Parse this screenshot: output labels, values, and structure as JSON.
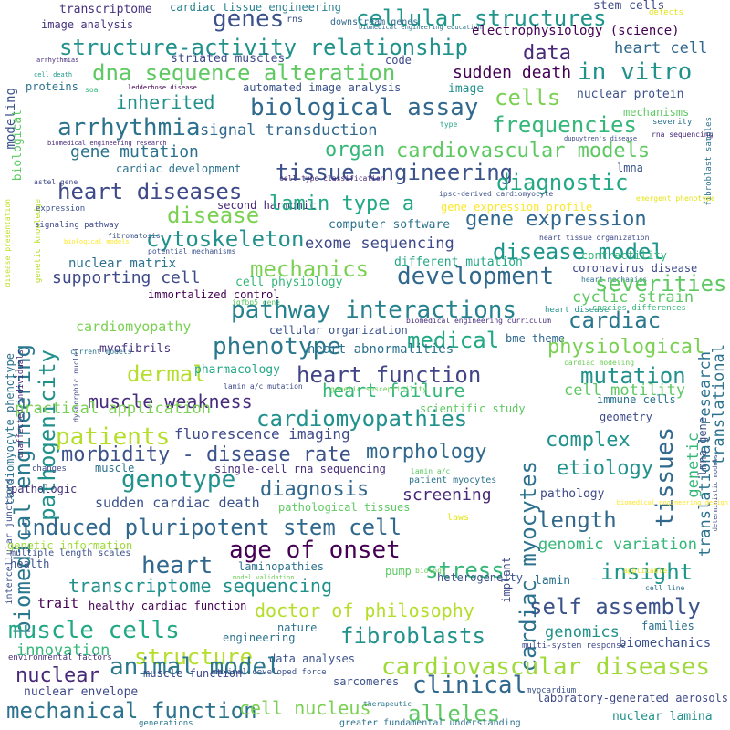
{
  "words": [
    {
      "text": "transcriptome",
      "color": "#46337e"
    },
    {
      "text": "cardiac tissue engineering",
      "color": "#277f8e"
    },
    {
      "text": "rns",
      "color": "#3b528b"
    },
    {
      "text": "stem cells",
      "color": "#3e4a89"
    },
    {
      "text": "defects",
      "color": "#e5e419"
    },
    {
      "text": "genes",
      "color": "#3b528b"
    },
    {
      "text": "cellular structures",
      "color": "#1f968b"
    },
    {
      "text": "image analysis",
      "color": "#46337e"
    },
    {
      "text": "downstream genes",
      "color": "#31688e"
    },
    {
      "text": "biomedical engineering education",
      "color": "#2c728e"
    },
    {
      "text": "electrophysiology (science)",
      "color": "#440154"
    },
    {
      "text": "modeling",
      "color": "#3b528b"
    },
    {
      "text": "structure-activity relationship",
      "color": "#21918c"
    },
    {
      "text": "data",
      "color": "#482878"
    },
    {
      "text": "heart cell",
      "color": "#31688e"
    },
    {
      "text": "arrhythmias",
      "color": "#472d7b"
    },
    {
      "text": "striated muscles",
      "color": "#3e4a89"
    },
    {
      "text": "code",
      "color": "#3e4a89"
    },
    {
      "text": "in vitro",
      "color": "#21918c"
    },
    {
      "text": "fibroblast samples",
      "color": "#2c728e"
    },
    {
      "text": "dna sequence alteration",
      "color": "#5ec962"
    },
    {
      "text": "sudden death",
      "color": "#440154"
    },
    {
      "text": "biological",
      "color": "#5ec962"
    },
    {
      "text": "cell death",
      "color": "#1f9a8a"
    },
    {
      "text": "proteins",
      "color": "#2c728e"
    },
    {
      "text": "ledderhose disease",
      "color": "#440154"
    },
    {
      "text": "automated image analysis",
      "color": "#3b528b"
    },
    {
      "text": "image",
      "color": "#21918c"
    },
    {
      "text": "cells",
      "color": "#7ad151"
    },
    {
      "text": "nuclear protein",
      "color": "#3b528b"
    },
    {
      "text": "soa",
      "color": "#35b779"
    },
    {
      "text": "inherited",
      "color": "#21918c"
    },
    {
      "text": "biological assay",
      "color": "#31688e"
    },
    {
      "text": "mechanisms",
      "color": "#5ec962"
    },
    {
      "text": "severity",
      "color": "#2c728e"
    },
    {
      "text": "type",
      "color": "#22a884"
    },
    {
      "text": "rna sequencing",
      "color": "#482878"
    },
    {
      "text": "disease presentation",
      "color": "#bddf26"
    },
    {
      "text": "genetic knowledge",
      "color": "#b5de2b"
    },
    {
      "text": "arrhythmia",
      "color": "#2c728e"
    },
    {
      "text": "signal transduction",
      "color": "#31688e"
    },
    {
      "text": "frequencies",
      "color": "#35b779"
    },
    {
      "text": "translational research",
      "color": "#2c728e"
    },
    {
      "text": "biomedical engineering research",
      "color": "#482878"
    },
    {
      "text": "dupuytren's disease",
      "color": "#3e4a89"
    },
    {
      "text": "biomedical engineering",
      "color": "#2a788e"
    },
    {
      "text": "pathogenicity",
      "color": "#21918c"
    },
    {
      "text": "gene mutation",
      "color": "#2c728e"
    },
    {
      "text": "organ",
      "color": "#35b779"
    },
    {
      "text": "cardiovascular models",
      "color": "#5ec962"
    },
    {
      "text": "cardiac development",
      "color": "#2c728e"
    },
    {
      "text": "lmna",
      "color": "#3b528b"
    },
    {
      "text": "astel gene",
      "color": "#3e4a89"
    },
    {
      "text": "tissue engineering",
      "color": "#3b528b"
    },
    {
      "text": "diagnostic",
      "color": "#22a884"
    },
    {
      "text": "cell type classification",
      "color": "#482878"
    },
    {
      "text": "heart diseases",
      "color": "#3e4a89"
    },
    {
      "text": "ipsc-derived cardiomyocyte",
      "color": "#3b528b"
    },
    {
      "text": "emergent phenotype",
      "color": "#e5e419"
    },
    {
      "text": "disease",
      "color": "#7ad151"
    },
    {
      "text": "second harmonic",
      "color": "#482878"
    },
    {
      "text": "lamin type a",
      "color": "#22a884"
    },
    {
      "text": "gene expression profile",
      "color": "#fde725"
    },
    {
      "text": "expression",
      "color": "#3b528b"
    },
    {
      "text": "gene expression",
      "color": "#31688e"
    },
    {
      "text": "cytoskeleton",
      "color": "#21918c"
    },
    {
      "text": "signaling pathway",
      "color": "#3e4a89"
    },
    {
      "text": "computer software",
      "color": "#2c728e"
    },
    {
      "text": "heart tissue organization",
      "color": "#3e4a89"
    },
    {
      "text": "biological models",
      "color": "#fde725"
    },
    {
      "text": "fibromatosis",
      "color": "#3b528b"
    },
    {
      "text": "exome sequencing",
      "color": "#3e4a89"
    },
    {
      "text": "disease model",
      "color": "#1f968b"
    },
    {
      "text": "contractility",
      "color": "#35b779"
    },
    {
      "text": "nuclear matrix",
      "color": "#2c728e"
    },
    {
      "text": "potential mechanisms",
      "color": "#3b528b"
    },
    {
      "text": "different mutation",
      "color": "#22a884"
    },
    {
      "text": "coronavirus disease",
      "color": "#3e4a89"
    },
    {
      "text": "mechanics",
      "color": "#7ad151"
    },
    {
      "text": "development",
      "color": "#31688e"
    },
    {
      "text": "cardiomyocyte phenotype",
      "color": "#2c728e"
    },
    {
      "text": "unaffected individuals",
      "color": "#482878"
    },
    {
      "text": "dysmorphic nuclei",
      "color": "#3e4a89"
    },
    {
      "text": "supporting cell",
      "color": "#3e4a89"
    },
    {
      "text": "cell physiology",
      "color": "#35b779"
    },
    {
      "text": "heart mechanics",
      "color": "#2c728e"
    },
    {
      "text": "severities",
      "color": "#5ec962"
    },
    {
      "text": "immortalized control",
      "color": "#440154"
    },
    {
      "text": "igfbp5 gene",
      "color": "#5ec962"
    },
    {
      "text": "cyclic strain",
      "color": "#5ec962"
    },
    {
      "text": "pathway interactions",
      "color": "#26828e"
    },
    {
      "text": "heart disease",
      "color": "#21918c"
    },
    {
      "text": "cardiac",
      "color": "#2a788e"
    },
    {
      "text": "biomedical engineering curriculum",
      "color": "#472d7b"
    },
    {
      "text": "species differences",
      "color": "#35b779"
    },
    {
      "text": "cardiomyopathy",
      "color": "#7ad151"
    },
    {
      "text": "cellular organization",
      "color": "#3b528b"
    },
    {
      "text": "medical",
      "color": "#22a884"
    },
    {
      "text": "bme theme",
      "color": "#31688e"
    },
    {
      "text": "translational",
      "color": "#2c728e"
    },
    {
      "text": "phenotype",
      "color": "#2a788e"
    },
    {
      "text": "heart abnormalities",
      "color": "#2c728e"
    },
    {
      "text": "physiological",
      "color": "#7ad151"
    },
    {
      "text": "myofibrils",
      "color": "#46337e"
    },
    {
      "text": "current models",
      "color": "#2c728e"
    },
    {
      "text": "cardiac modeling",
      "color": "#6ece58"
    },
    {
      "text": "dermal",
      "color": "#b5de2b"
    },
    {
      "text": "pharmacology",
      "color": "#22a884"
    },
    {
      "text": "heart function",
      "color": "#414487"
    },
    {
      "text": "mutation",
      "color": "#21918c"
    },
    {
      "text": "lamin a/c mutation",
      "color": "#3e4a89"
    },
    {
      "text": "muscle weakness",
      "color": "#472d7b"
    },
    {
      "text": "heart failure",
      "color": "#35b779"
    },
    {
      "text": "genetic susceptibility",
      "color": "#6ece58"
    },
    {
      "text": "cell motility",
      "color": "#5ec962"
    },
    {
      "text": "practical application",
      "color": "#7ad151"
    },
    {
      "text": "immune cells",
      "color": "#2c728e"
    },
    {
      "text": "intercellular junctions",
      "color": "#3b528b"
    },
    {
      "text": "cardiomyopathies",
      "color": "#21918c"
    },
    {
      "text": "scientific study",
      "color": "#5ec962"
    },
    {
      "text": "geometry",
      "color": "#3e4a89"
    },
    {
      "text": "patients",
      "color": "#b5de2b"
    },
    {
      "text": "fluorescence imaging",
      "color": "#3e4a89"
    },
    {
      "text": "complex",
      "color": "#21918c"
    },
    {
      "text": "cardiac myocytes",
      "color": "#2c728e"
    },
    {
      "text": "tissues",
      "color": "#31688e"
    },
    {
      "text": "genetic",
      "color": "#35b779"
    },
    {
      "text": "lmna gene",
      "color": "#3b528b"
    },
    {
      "text": "deterministic models",
      "color": "#3e4a89"
    },
    {
      "text": "morbidity - disease rate",
      "color": "#3b528b"
    },
    {
      "text": "morphology",
      "color": "#31688e"
    },
    {
      "text": "changes",
      "color": "#3e4a89"
    },
    {
      "text": "muscle",
      "color": "#2c728e"
    },
    {
      "text": "single-cell rna sequencing",
      "color": "#472d7b"
    },
    {
      "text": "lamin a/c",
      "color": "#5ec962"
    },
    {
      "text": "etiology",
      "color": "#21918c"
    },
    {
      "text": "genotype",
      "color": "#21918c"
    },
    {
      "text": "patient myocytes",
      "color": "#2c728e"
    },
    {
      "text": "pathologic",
      "color": "#46337e"
    },
    {
      "text": "diagnosis",
      "color": "#31688e"
    },
    {
      "text": "pathology",
      "color": "#3e4a89"
    },
    {
      "text": "biomedical engineering design",
      "color": "#fde725"
    },
    {
      "text": "screening",
      "color": "#482878"
    },
    {
      "text": "sudden cardiac death",
      "color": "#3b528b"
    },
    {
      "text": "pathological tissues",
      "color": "#5ec962"
    },
    {
      "text": "length",
      "color": "#31688e"
    },
    {
      "text": "induced pluripotent stem cell",
      "color": "#31688e"
    },
    {
      "text": "laws",
      "color": "#e5e419"
    },
    {
      "text": "implant",
      "color": "#3e4a89"
    },
    {
      "text": "genetic information",
      "color": "#9fda3a"
    },
    {
      "text": "age of onset",
      "color": "#440154"
    },
    {
      "text": "genomic variation",
      "color": "#35b779"
    },
    {
      "text": "multiple length scales",
      "color": "#3b528b"
    },
    {
      "text": "heart",
      "color": "#31688e"
    },
    {
      "text": "stress",
      "color": "#35b779"
    },
    {
      "text": "health",
      "color": "#3b528b"
    },
    {
      "text": "laminopathies",
      "color": "#2c728e"
    },
    {
      "text": "pump",
      "color": "#5ec962"
    },
    {
      "text": "insight",
      "color": "#1f968b"
    },
    {
      "text": "applicable",
      "color": "#e5e419"
    },
    {
      "text": "transcriptome sequencing",
      "color": "#21918c"
    },
    {
      "text": "model validation",
      "color": "#6ece58"
    },
    {
      "text": "biology",
      "color": "#6ece58"
    },
    {
      "text": "heterogeneity",
      "color": "#3b528b"
    },
    {
      "text": "lamin",
      "color": "#2c728e"
    },
    {
      "text": "cell line",
      "color": "#2c728e"
    },
    {
      "text": "trait",
      "color": "#440154"
    },
    {
      "text": "healthy cardiac function",
      "color": "#440154"
    },
    {
      "text": "doctor of philosophy",
      "color": "#b5de2b"
    },
    {
      "text": "self assembly",
      "color": "#3b528b"
    },
    {
      "text": "muscle cells",
      "color": "#22a884"
    },
    {
      "text": "nature",
      "color": "#2c728e"
    },
    {
      "text": "fibroblasts",
      "color": "#21918c"
    },
    {
      "text": "genomics",
      "color": "#21918c"
    },
    {
      "text": "families",
      "color": "#2c728e"
    },
    {
      "text": "innovation",
      "color": "#35b779"
    },
    {
      "text": "engineering",
      "color": "#2c728e"
    },
    {
      "text": "multi-system response",
      "color": "#3e4a89"
    },
    {
      "text": "biomechanics",
      "color": "#3b528b"
    },
    {
      "text": "environmental factors",
      "color": "#472d7b"
    },
    {
      "text": "structure",
      "color": "#b5de2b"
    },
    {
      "text": "data analyses",
      "color": "#3b528b"
    },
    {
      "text": "cardiovascular diseases",
      "color": "#9fda3a"
    },
    {
      "text": "nuclear",
      "color": "#482878"
    },
    {
      "text": "animal model",
      "color": "#2a788e"
    },
    {
      "text": "muscle function",
      "color": "#3e4a89"
    },
    {
      "text": "maximal developed force",
      "color": "#3b528b"
    },
    {
      "text": "clinical",
      "color": "#31688e"
    },
    {
      "text": "nuclear envelope",
      "color": "#3e4a89"
    },
    {
      "text": "sarcomeres",
      "color": "#3b528b"
    },
    {
      "text": "myocardium",
      "color": "#3b528b"
    },
    {
      "text": "laboratory-generated aerosols",
      "color": "#3e4a89"
    },
    {
      "text": "mechanical function",
      "color": "#2c728e"
    },
    {
      "text": "cell nucleus",
      "color": "#7ad151"
    },
    {
      "text": "therapeutic",
      "color": "#2a788e"
    },
    {
      "text": "alleles",
      "color": "#5ec962"
    },
    {
      "text": "nuclear lamina",
      "color": "#21918c"
    },
    {
      "text": "generations",
      "color": "#2a788e"
    },
    {
      "text": "greater fundamental understanding",
      "color": "#2c728e"
    },
    {
      "text": "ros",
      "color": "#3e4a89"
    }
  ]
}
